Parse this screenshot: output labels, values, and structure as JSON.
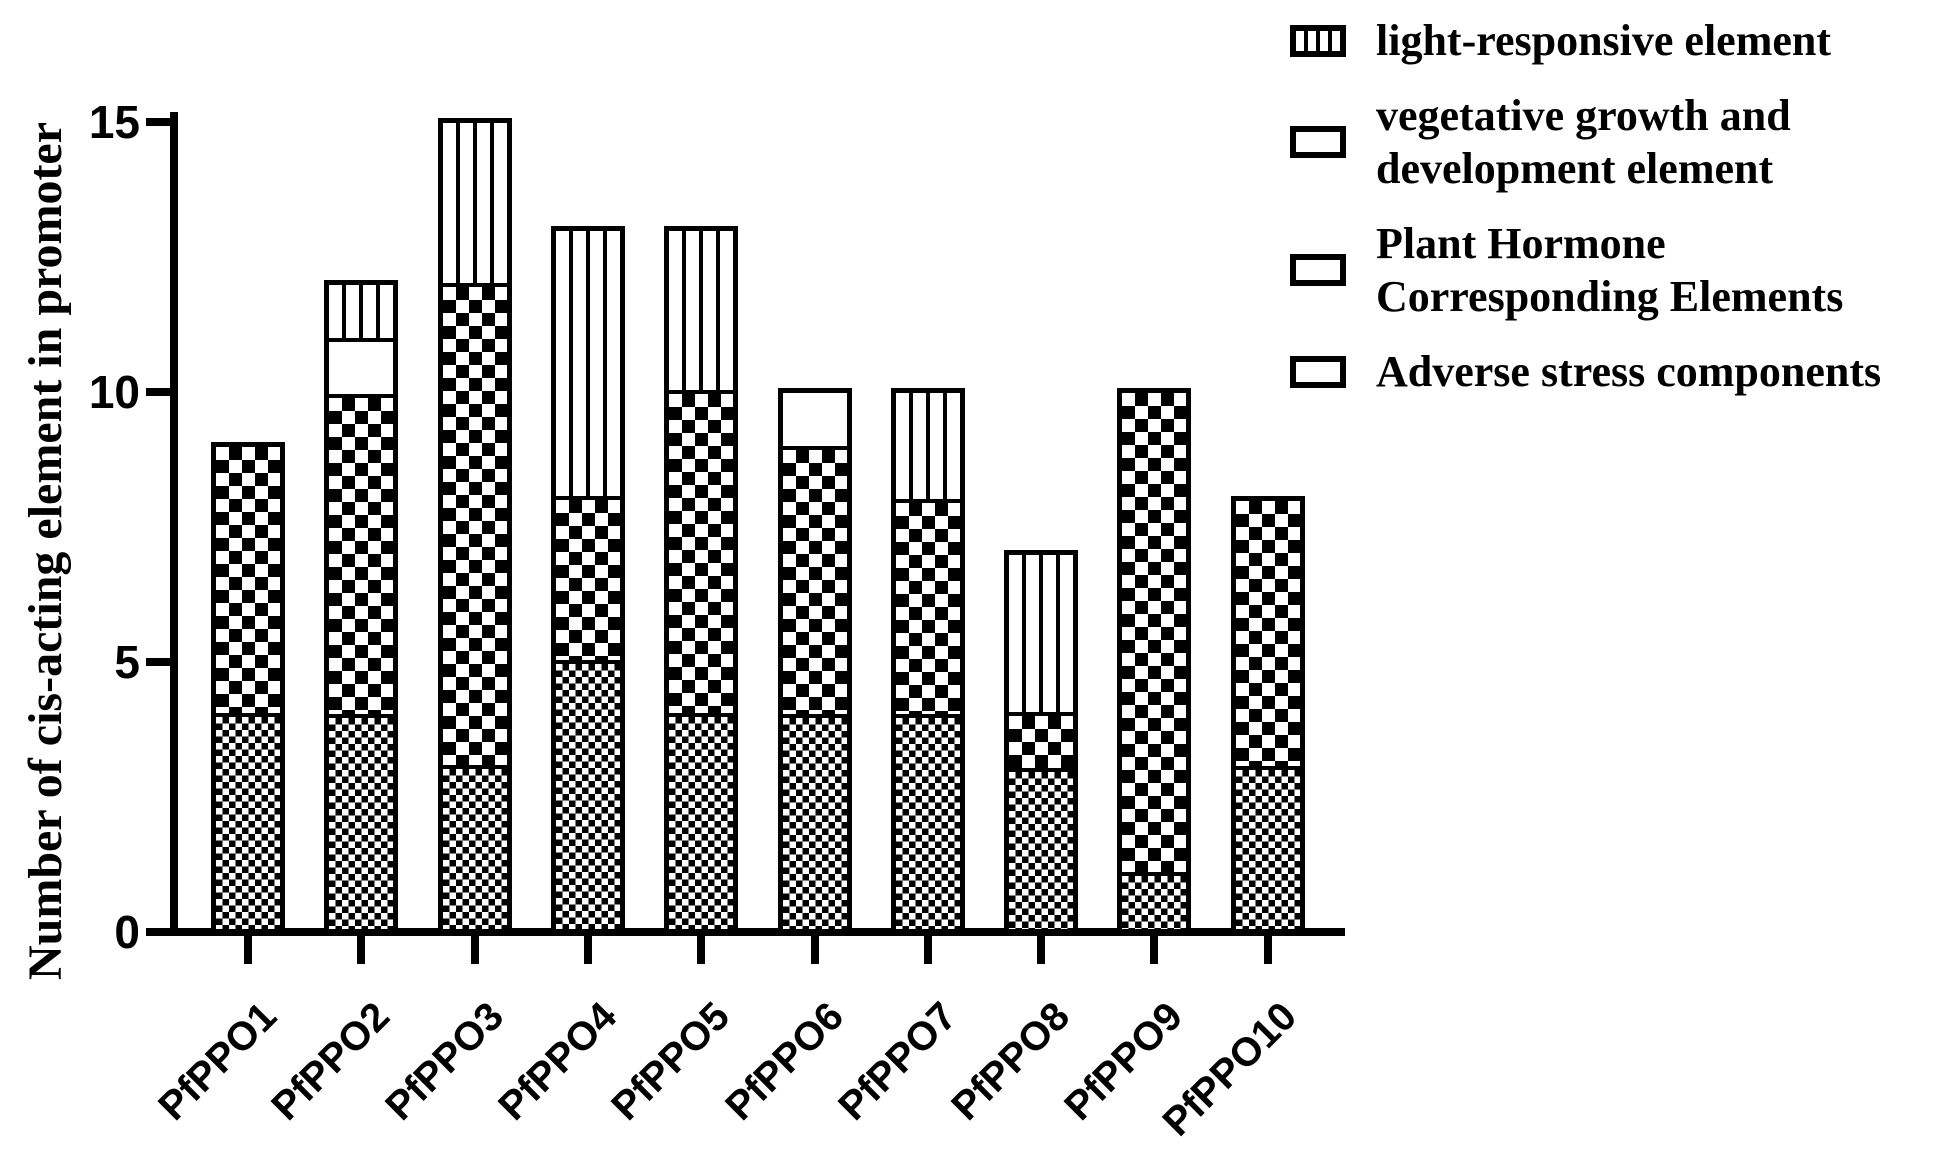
{
  "figure": {
    "background_color": "#ffffff",
    "ink_color": "#000000"
  },
  "y_axis": {
    "title": "Number of cis-acting element in promoter",
    "range": [
      0,
      15
    ],
    "ticks": [
      0,
      5,
      10,
      15
    ]
  },
  "x_axis": {
    "categories": [
      "PfPPO1",
      "PfPPO2",
      "PfPPO3",
      "PfPPO4",
      "PfPPO5",
      "PfPPO6",
      "PfPPO7",
      "PfPPO8",
      "PfPPO9",
      "PfPPO10"
    ]
  },
  "legend": {
    "items": [
      {
        "label": "light-responsive element",
        "pattern": "vertical-stripes"
      },
      {
        "label": "vegetative growth and development element",
        "pattern": "solid-white"
      },
      {
        "label": "Plant Hormone Corresponding Elements",
        "pattern": "checkerboard"
      },
      {
        "label": "Adverse stress components",
        "pattern": "fine-checker"
      }
    ]
  },
  "chart_data": {
    "type": "bar",
    "stacked": true,
    "title": "",
    "xlabel": "",
    "ylabel": "Number of cis-acting element in promoter",
    "ylim": [
      0,
      15
    ],
    "yticks": [
      0,
      5,
      10,
      15
    ],
    "grid": false,
    "legend_position": "top-right",
    "categories": [
      "PfPPO1",
      "PfPPO2",
      "PfPPO3",
      "PfPPO4",
      "PfPPO5",
      "PfPPO6",
      "PfPPO7",
      "PfPPO8",
      "PfPPO9",
      "PfPPO10"
    ],
    "series": [
      {
        "name": "Adverse stress components",
        "pattern": "fine-checker",
        "values": [
          4,
          4,
          3,
          5,
          4,
          4,
          4,
          3,
          1,
          3
        ]
      },
      {
        "name": "Plant Hormone Corresponding Elements",
        "pattern": "checkerboard",
        "values": [
          5,
          6,
          9,
          3,
          6,
          5,
          4,
          1,
          9,
          5
        ]
      },
      {
        "name": "vegetative growth and development element",
        "pattern": "solid-white",
        "values": [
          0,
          1,
          0,
          0,
          0,
          1,
          0,
          0,
          0,
          0
        ]
      },
      {
        "name": "light-responsive element",
        "pattern": "vertical-stripes",
        "values": [
          0,
          1,
          3,
          5,
          3,
          0,
          2,
          3,
          0,
          0
        ]
      }
    ],
    "totals": [
      9,
      12,
      15,
      13,
      13,
      10,
      10,
      7,
      10,
      8
    ]
  }
}
